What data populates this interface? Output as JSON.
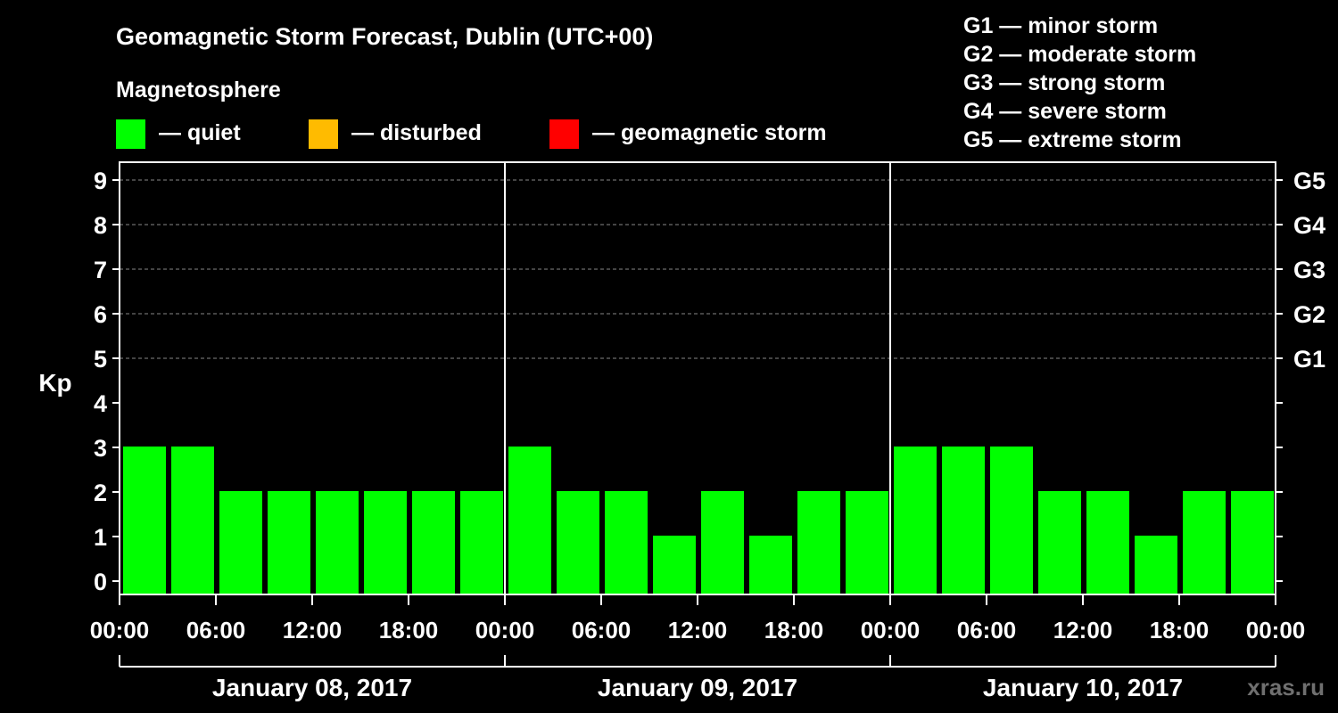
{
  "chart_data": {
    "type": "bar",
    "title": "Geomagnetic Storm Forecast, Dublin (UTC+00)",
    "ylabel": "Kp",
    "ylim": [
      0,
      9
    ],
    "y_ticks": [
      "0",
      "1",
      "2",
      "3",
      "4",
      "5",
      "6",
      "7",
      "8",
      "9"
    ],
    "right_ticks": [
      {
        "kp": 5,
        "label": "G1"
      },
      {
        "kp": 6,
        "label": "G2"
      },
      {
        "kp": 7,
        "label": "G3"
      },
      {
        "kp": 8,
        "label": "G4"
      },
      {
        "kp": 9,
        "label": "G5"
      }
    ],
    "x_ticks": [
      "00:00",
      "06:00",
      "12:00",
      "18:00",
      "00:00",
      "06:00",
      "12:00",
      "18:00",
      "00:00",
      "06:00",
      "12:00",
      "18:00",
      "00:00"
    ],
    "days": [
      {
        "date": "January 08, 2017",
        "values": [
          3,
          3,
          2,
          2,
          2,
          2,
          2,
          2
        ]
      },
      {
        "date": "January 09, 2017",
        "values": [
          3,
          2,
          2,
          1,
          2,
          1,
          2,
          2
        ]
      },
      {
        "date": "January 10, 2017",
        "values": [
          3,
          3,
          3,
          2,
          2,
          1,
          2,
          2
        ]
      }
    ],
    "interval_hours": 3,
    "grid": "dashed at Kp 5-9",
    "legend": {
      "heading": "Magnetosphere",
      "items": [
        {
          "label": "— quiet",
          "color": "#00ff00"
        },
        {
          "label": "— disturbed",
          "color": "#ffbb00"
        },
        {
          "label": "— geomagnetic storm",
          "color": "#ff0000"
        }
      ]
    },
    "storm_scale": [
      "G1 — minor storm",
      "G2 — moderate storm",
      "G3 — strong storm",
      "G4 — severe storm",
      "G5 — extreme storm"
    ]
  },
  "colors": {
    "background": "#000000",
    "text": "#ffffff",
    "quiet": "#00ff00",
    "disturbed": "#ffbb00",
    "storm": "#ff0000",
    "grid": "#888888"
  },
  "watermark": "xras.ru"
}
